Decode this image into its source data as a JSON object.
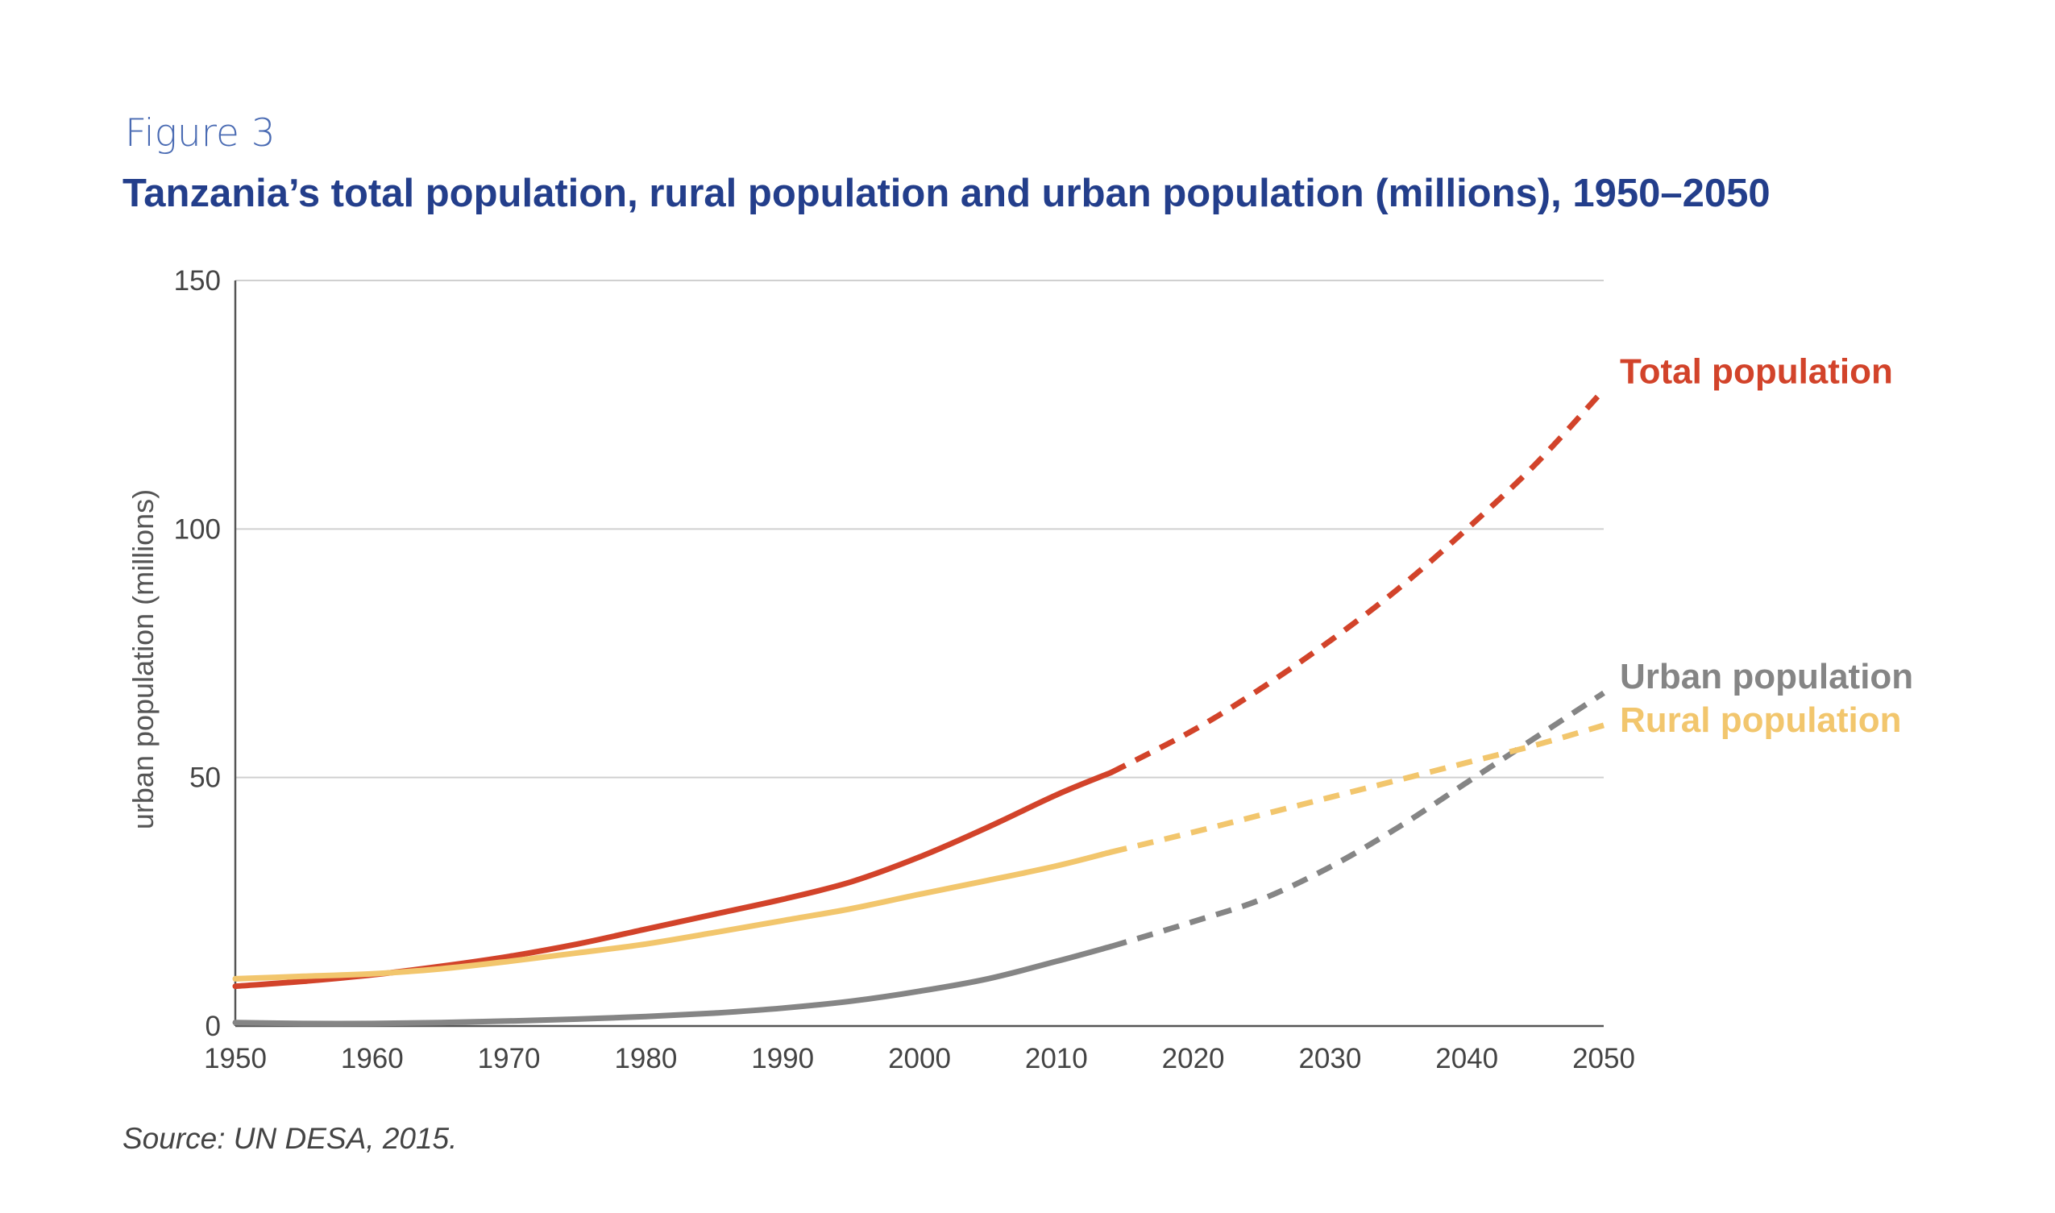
{
  "figure": {
    "label": "Figure 3",
    "title": "Tanzania’s total population, rural population and urban population (millions), 1950–2050",
    "source": "Source: UN DESA, 2015."
  },
  "chart_data": {
    "type": "line",
    "ylabel": "urban population (millions)",
    "xlabel": "",
    "xlim": [
      1950,
      2050
    ],
    "ylim": [
      0,
      150
    ],
    "x_ticks": [
      "1950",
      "1960",
      "1970",
      "1980",
      "1990",
      "2000",
      "2010",
      "2020",
      "2030",
      "2040",
      "2050"
    ],
    "y_ticks": [
      "0",
      "50",
      "100",
      "150"
    ],
    "grid": "horizontal",
    "projection_start_year": 2014,
    "series": [
      {
        "name": "Total population",
        "color": "#d2432a",
        "points": [
          [
            1950,
            8
          ],
          [
            1955,
            9
          ],
          [
            1960,
            10.3
          ],
          [
            1965,
            12
          ],
          [
            1970,
            14
          ],
          [
            1975,
            16.5
          ],
          [
            1980,
            19.5
          ],
          [
            1985,
            22.5
          ],
          [
            1990,
            25.5
          ],
          [
            1995,
            29
          ],
          [
            2000,
            34
          ],
          [
            2005,
            40
          ],
          [
            2010,
            46.5
          ],
          [
            2014,
            51
          ],
          [
            2020,
            59.5
          ],
          [
            2025,
            68
          ],
          [
            2030,
            77.5
          ],
          [
            2035,
            88
          ],
          [
            2040,
            100
          ],
          [
            2045,
            113
          ],
          [
            2050,
            128
          ]
        ]
      },
      {
        "name": "Urban population",
        "color": "#858585",
        "points": [
          [
            1950,
            0.7
          ],
          [
            1955,
            0.5
          ],
          [
            1960,
            0.5
          ],
          [
            1965,
            0.7
          ],
          [
            1970,
            1.0
          ],
          [
            1975,
            1.4
          ],
          [
            1980,
            1.9
          ],
          [
            1985,
            2.6
          ],
          [
            1990,
            3.6
          ],
          [
            1995,
            5.0
          ],
          [
            2000,
            7
          ],
          [
            2005,
            9.5
          ],
          [
            2010,
            13
          ],
          [
            2014,
            16
          ],
          [
            2020,
            21
          ],
          [
            2025,
            25.5
          ],
          [
            2030,
            32
          ],
          [
            2035,
            40
          ],
          [
            2040,
            49
          ],
          [
            2045,
            58
          ],
          [
            2050,
            67
          ]
        ]
      },
      {
        "name": "Rural population",
        "color": "#f2c66d",
        "points": [
          [
            1950,
            9.5
          ],
          [
            1955,
            10
          ],
          [
            1960,
            10.5
          ],
          [
            1965,
            11.5
          ],
          [
            1970,
            13
          ],
          [
            1975,
            14.7
          ],
          [
            1980,
            16.5
          ],
          [
            1985,
            18.8
          ],
          [
            1990,
            21.2
          ],
          [
            1995,
            23.6
          ],
          [
            2000,
            26.5
          ],
          [
            2005,
            29.3
          ],
          [
            2010,
            32.2
          ],
          [
            2014,
            35
          ],
          [
            2020,
            39
          ],
          [
            2025,
            42.5
          ],
          [
            2030,
            46
          ],
          [
            2035,
            49.5
          ],
          [
            2040,
            53
          ],
          [
            2045,
            56.5
          ],
          [
            2050,
            60.5
          ]
        ]
      }
    ]
  }
}
